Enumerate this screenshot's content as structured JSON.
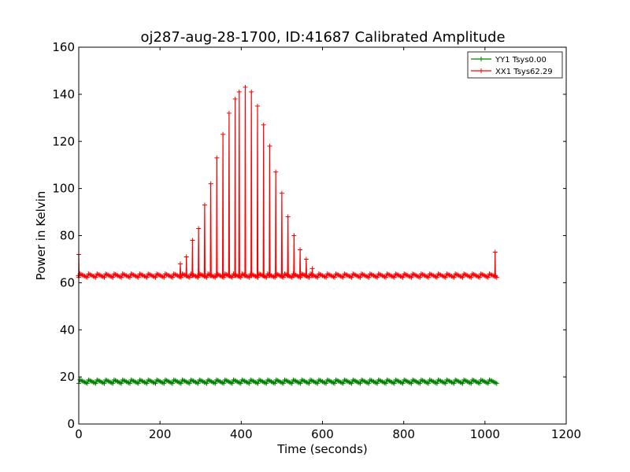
{
  "chart_data": {
    "type": "line",
    "title": "oj287-aug-28-1700, ID:41687 Calibrated Amplitude",
    "xlabel": "Time (seconds)",
    "ylabel": "Power in Kelvin",
    "xlim": [
      0,
      1200
    ],
    "ylim": [
      0,
      160
    ],
    "xticks": [
      "0",
      "200",
      "400",
      "600",
      "800",
      "1000",
      "1200"
    ],
    "yticks": [
      "0",
      "20",
      "40",
      "60",
      "80",
      "100",
      "120",
      "140",
      "160"
    ],
    "grid": false,
    "legend_position": "top-right",
    "marker": "+",
    "series": [
      {
        "name": "YY1 Tsys0.00",
        "color": "#008000",
        "baseline": 18,
        "x_range": [
          0,
          1030
        ],
        "sample_step_seconds": 3,
        "peaks": []
      },
      {
        "name": "XX1 Tsys62.29",
        "color": "#ff0000",
        "baseline": 63,
        "x_range": [
          0,
          1030
        ],
        "sample_step_seconds": 3,
        "peaks": [
          {
            "x": 0,
            "y": 72
          },
          {
            "x": 250,
            "y": 68
          },
          {
            "x": 265,
            "y": 71
          },
          {
            "x": 280,
            "y": 78
          },
          {
            "x": 295,
            "y": 83
          },
          {
            "x": 310,
            "y": 93
          },
          {
            "x": 325,
            "y": 102
          },
          {
            "x": 340,
            "y": 113
          },
          {
            "x": 355,
            "y": 123
          },
          {
            "x": 370,
            "y": 132
          },
          {
            "x": 385,
            "y": 138
          },
          {
            "x": 395,
            "y": 141
          },
          {
            "x": 410,
            "y": 143
          },
          {
            "x": 425,
            "y": 141
          },
          {
            "x": 440,
            "y": 135
          },
          {
            "x": 455,
            "y": 127
          },
          {
            "x": 470,
            "y": 118
          },
          {
            "x": 485,
            "y": 107
          },
          {
            "x": 500,
            "y": 98
          },
          {
            "x": 515,
            "y": 88
          },
          {
            "x": 530,
            "y": 80
          },
          {
            "x": 545,
            "y": 74
          },
          {
            "x": 560,
            "y": 70
          },
          {
            "x": 575,
            "y": 66
          },
          {
            "x": 1025,
            "y": 73
          }
        ]
      }
    ]
  }
}
